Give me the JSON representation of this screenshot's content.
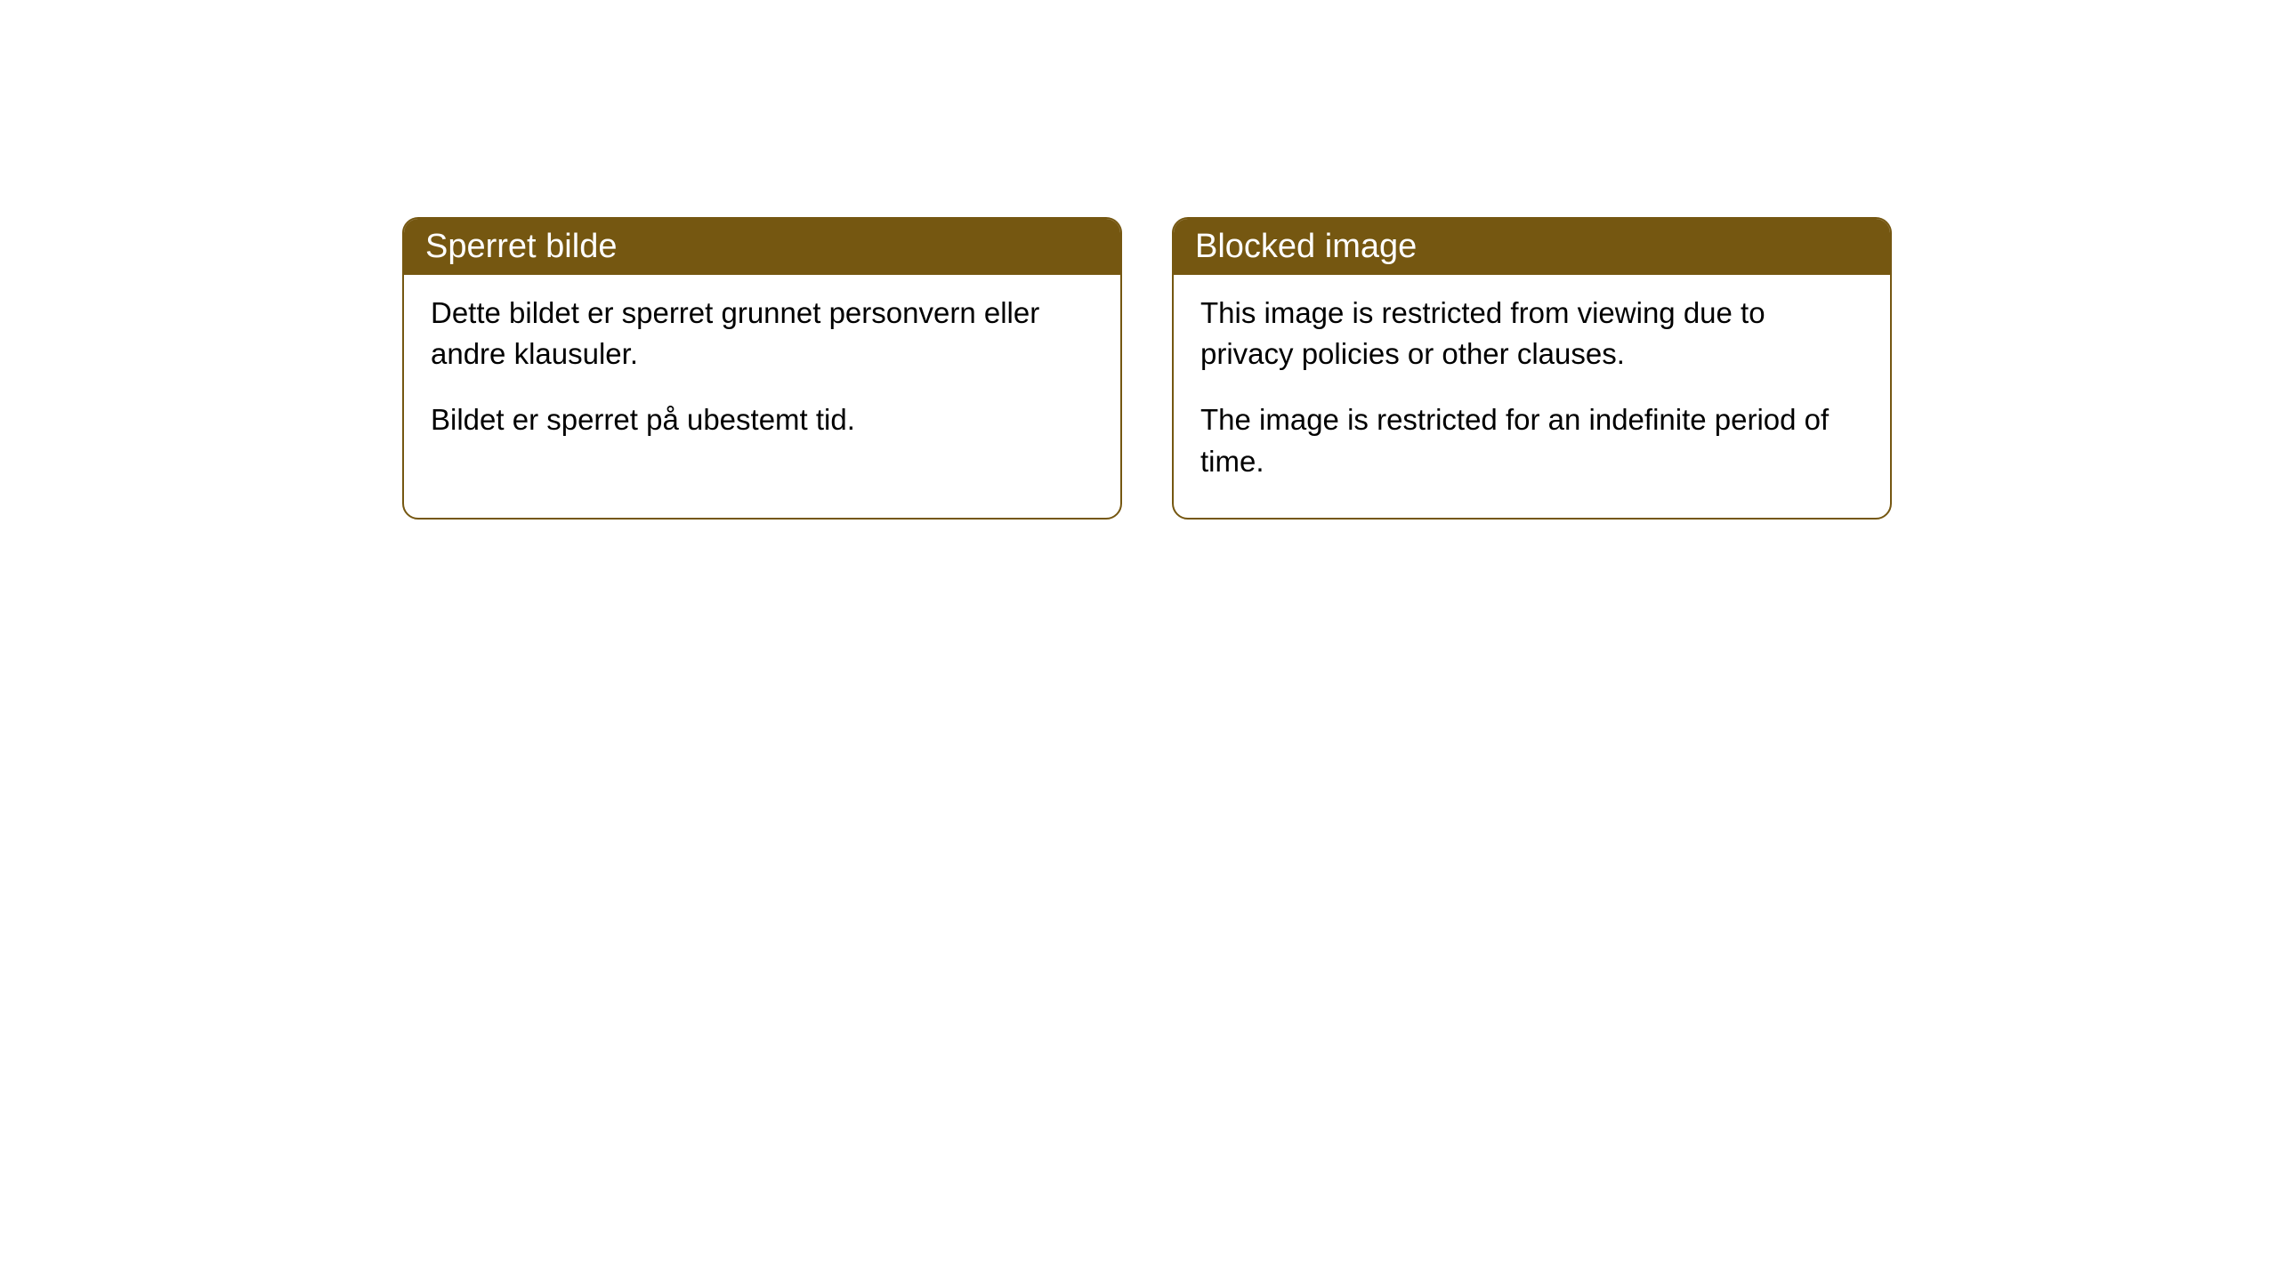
{
  "cards": [
    {
      "title": "Sperret bilde",
      "paragraph1": "Dette bildet er sperret grunnet personvern eller andre klausuler.",
      "paragraph2": "Bildet er sperret på ubestemt tid."
    },
    {
      "title": "Blocked image",
      "paragraph1": "This image is restricted from viewing due to privacy policies or other clauses.",
      "paragraph2": "The image is restricted for an indefinite period of time."
    }
  ],
  "styling": {
    "header_bg_color": "#755711",
    "header_text_color": "#ffffff",
    "border_color": "#755711",
    "body_bg_color": "#ffffff",
    "body_text_color": "#000000",
    "border_radius": 18,
    "header_fontsize": 38,
    "body_fontsize": 33
  }
}
